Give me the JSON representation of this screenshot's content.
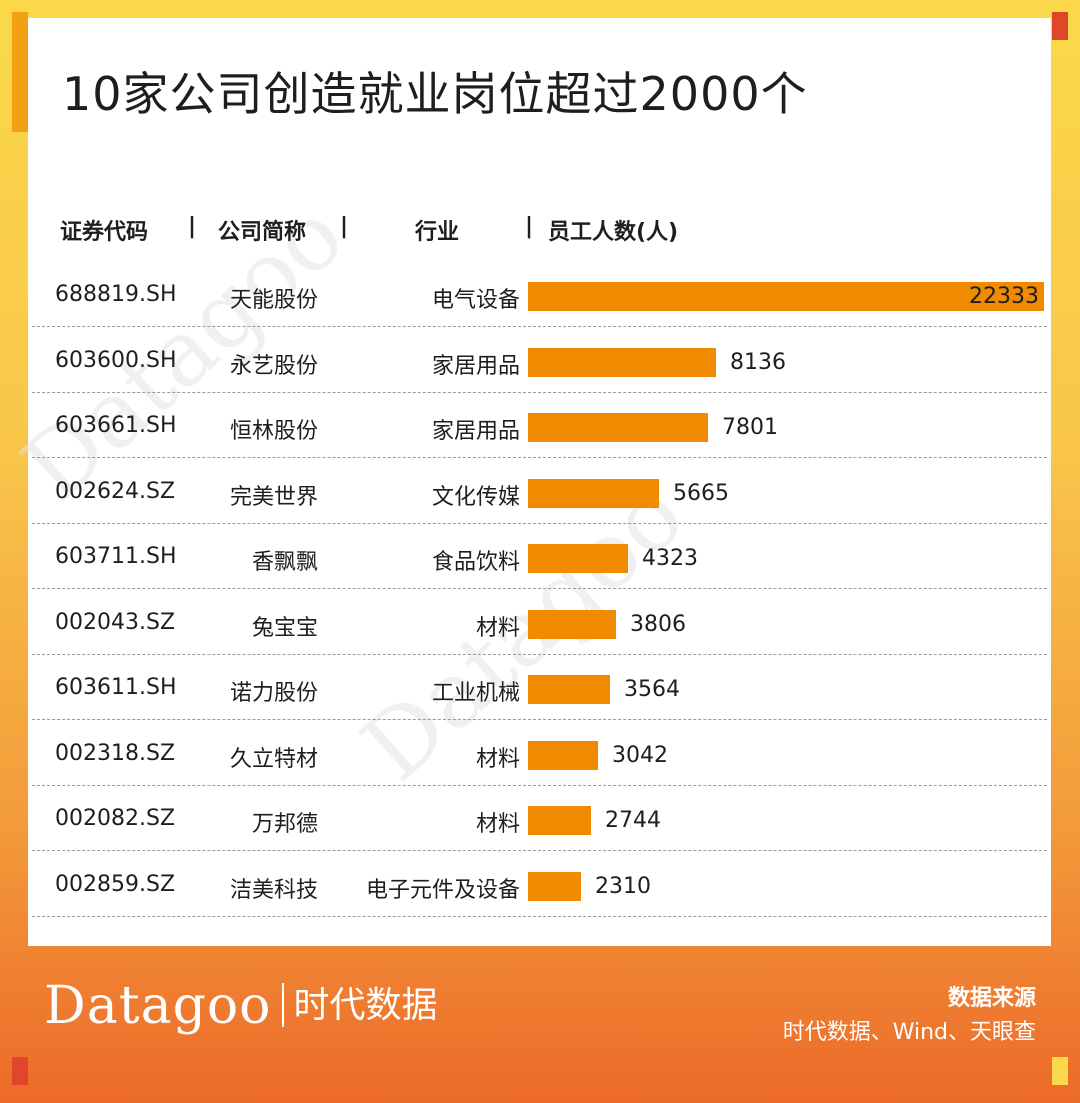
{
  "title": "10家公司创造就业岗位超过2000个",
  "headers": {
    "code": "证券代码",
    "name": "公司简称",
    "industry": "行业",
    "employees": "员工人数(人)",
    "divider": "|"
  },
  "watermark": "Datagoo",
  "colors": {
    "bar": "#f08a00",
    "frame_top": "#fbd94a",
    "frame_bottom": "#ec6a2a"
  },
  "chart_data": {
    "type": "bar",
    "orientation": "horizontal",
    "title": "10家公司创造就业岗位超过2000个",
    "columns": [
      "证券代码",
      "公司简称",
      "行业",
      "员工人数(人)"
    ],
    "rows": [
      {
        "code": "688819.SH",
        "name": "天能股份",
        "industry": "电气设备",
        "value": 22333,
        "value_label": "22333"
      },
      {
        "code": "603600.SH",
        "name": "永艺股份",
        "industry": "家居用品",
        "value": 8136,
        "value_label": "8136"
      },
      {
        "code": "603661.SH",
        "name": "恒林股份",
        "industry": "家居用品",
        "value": 7801,
        "value_label": "7801"
      },
      {
        "code": "002624.SZ",
        "name": "完美世界",
        "industry": "文化传媒",
        "value": 5665,
        "value_label": "5665"
      },
      {
        "code": "603711.SH",
        "name": "香飘飘",
        "industry": "食品饮料",
        "value": 4323,
        "value_label": "4323"
      },
      {
        "code": "002043.SZ",
        "name": "兔宝宝",
        "industry": "材料",
        "value": 3806,
        "value_label": "3806"
      },
      {
        "code": "603611.SH",
        "name": "诺力股份",
        "industry": "工业机械",
        "value": 3564,
        "value_label": "3564"
      },
      {
        "code": "002318.SZ",
        "name": "久立特材",
        "industry": "材料",
        "value": 3042,
        "value_label": "3042"
      },
      {
        "code": "002082.SZ",
        "name": "万邦德",
        "industry": "材料",
        "value": 2744,
        "value_label": "2744"
      },
      {
        "code": "002859.SZ",
        "name": "洁美科技",
        "industry": "电子元件及设备",
        "value": 2310,
        "value_label": "2310"
      }
    ],
    "xlim": [
      0,
      22333
    ],
    "grid": false,
    "legend": "none"
  },
  "footer": {
    "brand": "Datagoo",
    "brand_cn": "时代数据",
    "source_label": "数据来源",
    "source_text": "时代数据、Wind、天眼查"
  }
}
